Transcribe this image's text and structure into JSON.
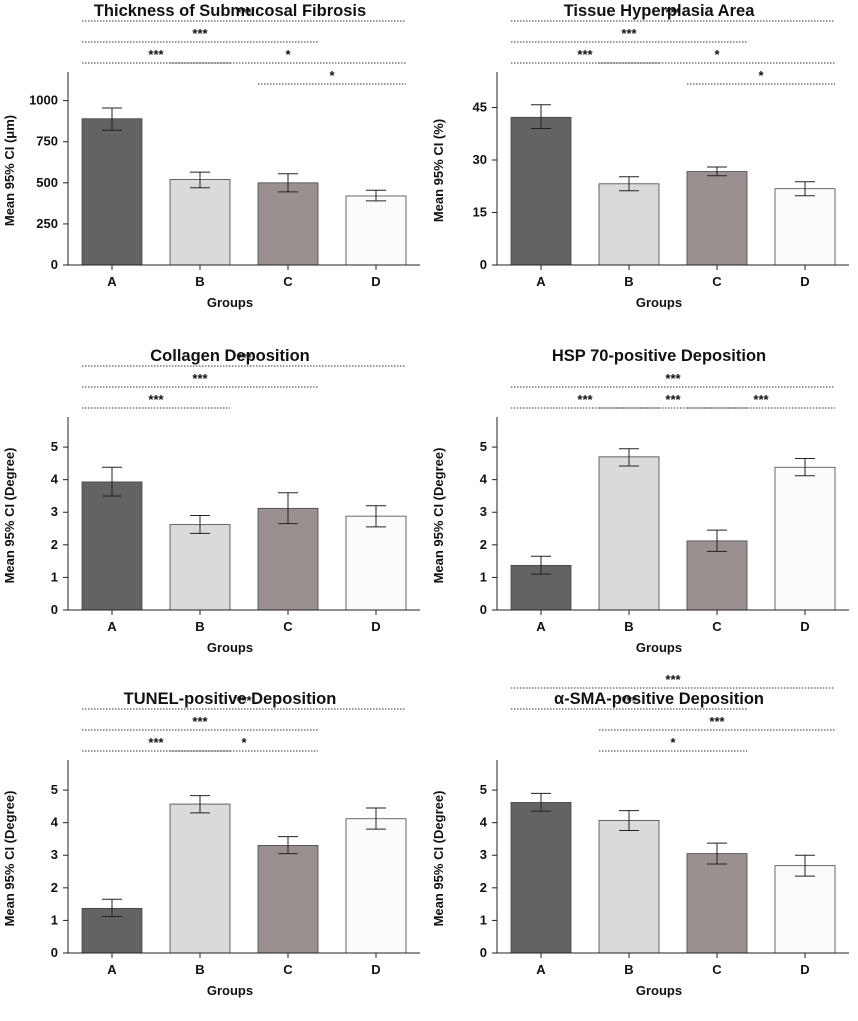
{
  "colors": {
    "A": "#636363",
    "B": "#dadada",
    "C": "#9a9090",
    "D": "#fcfafa",
    "stroke": "#444444",
    "axis": "#222222"
  },
  "chart_data": [
    {
      "type": "bar",
      "title": "Thickness of Submucosal Fibrosis",
      "xlabel": "Groups",
      "ylabel": "Mean 95% CI (μm)",
      "categories": [
        "A",
        "B",
        "C",
        "D"
      ],
      "values": [
        890,
        520,
        500,
        420
      ],
      "err_low": [
        820,
        470,
        445,
        390
      ],
      "err_high": [
        955,
        565,
        555,
        455
      ],
      "ylim": [
        0,
        1150
      ],
      "yticks": [
        0,
        250,
        500,
        750,
        1000
      ],
      "significance": [
        {
          "from": 0,
          "to": 1,
          "label": "***",
          "level": 1
        },
        {
          "from": 0,
          "to": 2,
          "label": "***",
          "level": 2
        },
        {
          "from": 0,
          "to": 3,
          "label": "***",
          "level": 3
        },
        {
          "from": 1,
          "to": 3,
          "label": "*",
          "level": 1.0
        },
        {
          "from": 2,
          "to": 3,
          "label": "*",
          "level": 0.0
        }
      ]
    },
    {
      "type": "bar",
      "title": "Tissue Hyperplasia Area",
      "xlabel": "Groups",
      "ylabel": "Mean 95% CI (%)",
      "categories": [
        "A",
        "B",
        "C",
        "D"
      ],
      "values": [
        42.2,
        23.2,
        26.7,
        21.8
      ],
      "err_low": [
        39.0,
        21.2,
        25.5,
        19.8
      ],
      "err_high": [
        45.8,
        25.2,
        28.0,
        23.8
      ],
      "ylim": [
        0,
        54
      ],
      "yticks": [
        0,
        15,
        30,
        45
      ],
      "significance": [
        {
          "from": 0,
          "to": 1,
          "label": "***",
          "level": 1
        },
        {
          "from": 0,
          "to": 2,
          "label": "***",
          "level": 2
        },
        {
          "from": 0,
          "to": 3,
          "label": "***",
          "level": 3
        },
        {
          "from": 1,
          "to": 3,
          "label": "*",
          "level": 1.0
        },
        {
          "from": 2,
          "to": 3,
          "label": "*",
          "level": 0.0
        }
      ]
    },
    {
      "type": "bar",
      "title": "Collagen Deposition",
      "xlabel": "Groups",
      "ylabel": "Mean 95% CI (Degree)",
      "categories": [
        "A",
        "B",
        "C",
        "D"
      ],
      "values": [
        3.93,
        2.62,
        3.12,
        2.88
      ],
      "err_low": [
        3.5,
        2.35,
        2.65,
        2.55
      ],
      "err_high": [
        4.38,
        2.9,
        3.6,
        3.2
      ],
      "ylim": [
        0,
        5.8
      ],
      "yticks": [
        0,
        1,
        2,
        3,
        4,
        5
      ],
      "significance": [
        {
          "from": 0,
          "to": 1,
          "label": "***",
          "level": 1
        },
        {
          "from": 0,
          "to": 2,
          "label": "***",
          "level": 2
        },
        {
          "from": 0,
          "to": 3,
          "label": "***",
          "level": 3
        }
      ]
    },
    {
      "type": "bar",
      "title": "HSP 70-positive Deposition",
      "xlabel": "Groups",
      "ylabel": "Mean 95% CI (Degree)",
      "categories": [
        "A",
        "B",
        "C",
        "D"
      ],
      "values": [
        1.37,
        4.7,
        2.12,
        4.38
      ],
      "err_low": [
        1.1,
        4.42,
        1.8,
        4.12
      ],
      "err_high": [
        1.65,
        4.95,
        2.45,
        4.65
      ],
      "ylim": [
        0,
        5.8
      ],
      "yticks": [
        0,
        1,
        2,
        3,
        4,
        5
      ],
      "significance": [
        {
          "from": 0,
          "to": 1,
          "label": "***",
          "level": 1
        },
        {
          "from": 1,
          "to": 2,
          "label": "***",
          "level": 1
        },
        {
          "from": 2,
          "to": 3,
          "label": "***",
          "level": 1
        },
        {
          "from": 0,
          "to": 3,
          "label": "***",
          "level": 2
        }
      ]
    },
    {
      "type": "bar",
      "title": "TUNEL-positive Deposition",
      "xlabel": "Groups",
      "ylabel": "Mean 95% CI (Degree)",
      "categories": [
        "A",
        "B",
        "C",
        "D"
      ],
      "values": [
        1.37,
        4.57,
        3.3,
        4.12
      ],
      "err_low": [
        1.12,
        4.3,
        3.05,
        3.8
      ],
      "err_high": [
        1.65,
        4.83,
        3.57,
        4.45
      ],
      "ylim": [
        0,
        5.8
      ],
      "yticks": [
        0,
        1,
        2,
        3,
        4,
        5
      ],
      "significance": [
        {
          "from": 0,
          "to": 1,
          "label": "***",
          "level": 1
        },
        {
          "from": 1,
          "to": 2,
          "label": "*",
          "level": 1
        },
        {
          "from": 0,
          "to": 2,
          "label": "***",
          "level": 2
        },
        {
          "from": 0,
          "to": 3,
          "label": "***",
          "level": 3
        }
      ]
    },
    {
      "type": "bar",
      "title": "α-SMA-positive Deposition",
      "xlabel": "Groups",
      "ylabel": "Mean 95% CI (Degree)",
      "categories": [
        "A",
        "B",
        "C",
        "D"
      ],
      "values": [
        4.62,
        4.07,
        3.05,
        2.68
      ],
      "err_low": [
        4.35,
        3.76,
        2.73,
        2.36
      ],
      "err_high": [
        4.9,
        4.37,
        3.37,
        3.0
      ],
      "ylim": [
        0,
        5.8
      ],
      "yticks": [
        0,
        1,
        2,
        3,
        4,
        5
      ],
      "significance": [
        {
          "from": 1,
          "to": 2,
          "label": "*",
          "level": 1
        },
        {
          "from": 1,
          "to": 3,
          "label": "***",
          "level": 2
        },
        {
          "from": 0,
          "to": 2,
          "label": "***",
          "level": 3
        },
        {
          "from": 0,
          "to": 3,
          "label": "***",
          "level": 4
        }
      ]
    }
  ]
}
